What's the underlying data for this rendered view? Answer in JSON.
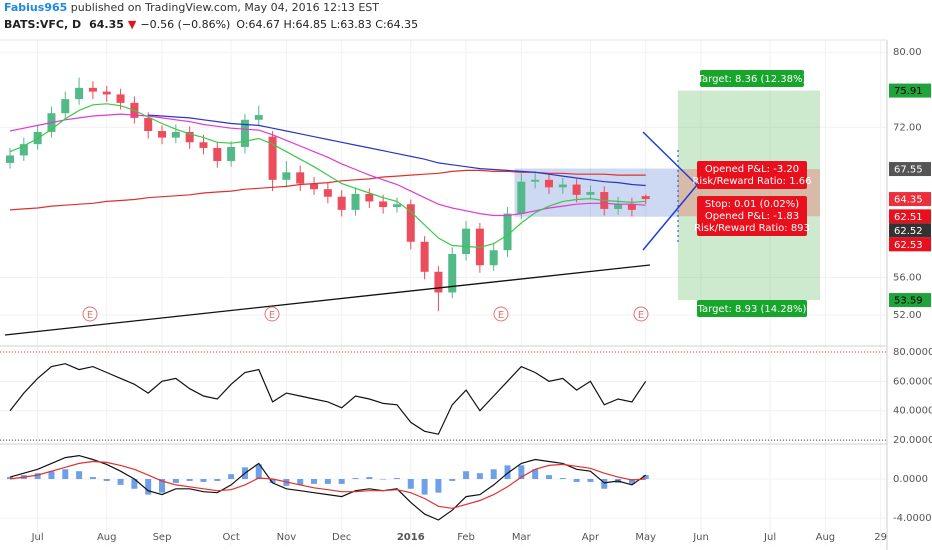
{
  "header": {
    "author": "Fabius965",
    "published": " published on TradingView.com, May 04, 2016 12:13 EST",
    "symbol": "BATS:VFC, D",
    "last": "64.35",
    "arrow": "▼",
    "change": "−0.56 (−0.86%)",
    "ohlc": "O:64.67 H:64.85 L:63.83 C:64.35"
  },
  "earnings": [
    "E",
    "E",
    "E",
    "E"
  ],
  "position": {
    "target_top": "Target: 8.36 (12.38%)",
    "pl_top": "Opened P&L: -3.20",
    "rr_top": "Risk/Reward Ratio: 1.66",
    "stop": "Stop: 0.01 (0.02%)",
    "pl_bottom": "Opened P&L: -1.83",
    "rr_bottom": "Risk/Reward Ratio: 893",
    "target_bottom": "Target: 8.93 (14.28%)"
  },
  "chart_data": [
    {
      "type": "candlestick",
      "categories": [
        null,
        null,
        "Jul",
        null,
        null,
        null,
        null,
        "Aug",
        null,
        null,
        null,
        "Sep",
        null,
        null,
        null,
        null,
        "Oct",
        null,
        null,
        null,
        "Nov",
        null,
        null,
        null,
        "Dec",
        null,
        null,
        null,
        null,
        "2016",
        null,
        null,
        null,
        "Feb",
        null,
        null,
        null,
        "Mar",
        null,
        null,
        null,
        null,
        "Apr",
        null,
        null,
        null,
        "May",
        null,
        null,
        null,
        "Jun",
        null,
        null,
        null,
        null,
        "Jul",
        null,
        null,
        null,
        "Aug",
        null,
        null,
        null,
        "29"
      ],
      "open": [
        68.2,
        69.0,
        70.2,
        71.5,
        73.5,
        75.0,
        76.2,
        75.8,
        75.5,
        74.6,
        73.0,
        71.6,
        70.9,
        71.5,
        70.4,
        69.8,
        68.4,
        69.9,
        72.8,
        71.0,
        66.4,
        67.2,
        66.0,
        65.4,
        64.6,
        63.2,
        64.9,
        64.1,
        63.5,
        63.8,
        59.8,
        56.6,
        54.4,
        58.5,
        61.2,
        57.3,
        58.9,
        62.8,
        66.2,
        66.4,
        65.6,
        65.9,
        64.8,
        65.1,
        63.3,
        63.8,
        64.67,
        null,
        null,
        null,
        null,
        null,
        null,
        null,
        null,
        null,
        null,
        null,
        null,
        null,
        null,
        null,
        null,
        null
      ],
      "high": [
        69.8,
        70.9,
        72.2,
        74.2,
        75.8,
        77.3,
        76.9,
        76.4,
        76.1,
        75.3,
        73.6,
        72.2,
        72.3,
        72.1,
        71.2,
        70.4,
        70.5,
        73.4,
        74.3,
        71.6,
        68.4,
        67.9,
        66.7,
        66.1,
        65.3,
        65.6,
        65.5,
        64.8,
        64.5,
        64.3,
        60.4,
        57.2,
        59.2,
        62.0,
        61.8,
        59.7,
        63.5,
        67.1,
        67.3,
        67.0,
        66.6,
        66.5,
        65.8,
        65.7,
        64.6,
        64.5,
        64.85,
        null,
        null,
        null,
        null,
        null,
        null,
        null,
        null,
        null,
        null,
        null,
        null,
        null,
        null,
        null,
        null,
        null
      ],
      "low": [
        67.6,
        68.4,
        69.6,
        70.9,
        72.9,
        74.4,
        75.0,
        74.7,
        73.9,
        72.4,
        70.8,
        70.2,
        70.3,
        69.7,
        69.1,
        67.7,
        67.8,
        69.2,
        72.1,
        65.2,
        65.6,
        65.2,
        64.8,
        63.9,
        62.5,
        62.6,
        63.4,
        62.8,
        62.9,
        59.0,
        55.8,
        52.4,
        53.8,
        57.8,
        56.5,
        56.7,
        58.2,
        62.2,
        65.5,
        64.9,
        64.9,
        64.0,
        64.3,
        62.6,
        62.7,
        62.5,
        63.83,
        null,
        null,
        null,
        null,
        null,
        null,
        null,
        null,
        null,
        null,
        null,
        null,
        null,
        null,
        null,
        null,
        null
      ],
      "close": [
        69.0,
        70.2,
        71.5,
        73.5,
        75.0,
        76.2,
        75.8,
        75.5,
        74.6,
        73.0,
        71.6,
        70.9,
        71.5,
        70.4,
        69.8,
        68.4,
        69.9,
        72.8,
        73.3,
        66.4,
        67.2,
        66.0,
        65.4,
        64.6,
        63.2,
        64.9,
        64.1,
        63.5,
        63.8,
        59.8,
        56.6,
        54.4,
        58.5,
        61.2,
        57.3,
        58.9,
        62.8,
        66.2,
        66.4,
        65.6,
        65.9,
        64.8,
        65.1,
        63.3,
        63.8,
        63.2,
        64.35,
        null,
        null,
        null,
        null,
        null,
        null,
        null,
        null,
        null,
        null,
        null,
        null,
        null,
        null,
        null,
        null,
        null
      ],
      "up_color": "#53b987",
      "down_color": "#eb4d5c",
      "series": [
        {
          "color": "#e0302c",
          "values": [
            63.2,
            63.3,
            63.4,
            63.6,
            63.7,
            63.8,
            63.9,
            64.1,
            64.2,
            64.3,
            64.5,
            64.6,
            64.7,
            64.8,
            65.0,
            65.1,
            65.2,
            65.4,
            65.5,
            65.6,
            65.7,
            65.9,
            66.0,
            66.1,
            66.3,
            66.4,
            66.5,
            66.7,
            66.8,
            66.9,
            67.0,
            67.1,
            67.3,
            67.4,
            67.4,
            67.3,
            67.3,
            67.2,
            67.2,
            67.1,
            67.1,
            67.0,
            67.0,
            67.0,
            66.9,
            66.9,
            66.9,
            null,
            null,
            null,
            null,
            null,
            null,
            null,
            null,
            null,
            null,
            null,
            null,
            null,
            null,
            null,
            null,
            null
          ]
        },
        {
          "color": "#2a35c9",
          "values": [
            null,
            null,
            null,
            null,
            null,
            null,
            null,
            null,
            null,
            null,
            73.3,
            73.2,
            73.1,
            73.0,
            72.8,
            72.6,
            72.4,
            72.3,
            72.2,
            71.9,
            71.6,
            71.3,
            71.0,
            70.7,
            70.4,
            70.1,
            69.8,
            69.5,
            69.2,
            68.9,
            68.6,
            68.2,
            68.0,
            67.8,
            67.6,
            67.5,
            67.4,
            67.3,
            67.2,
            67.0,
            66.8,
            66.6,
            66.4,
            66.2,
            66.1,
            65.9,
            65.8,
            null,
            null,
            null,
            null,
            null,
            null,
            null,
            null,
            null,
            null,
            null,
            null,
            null,
            null,
            null,
            null,
            null
          ]
        },
        {
          "color": "#e03ad0",
          "values": [
            71.6,
            71.9,
            72.2,
            72.5,
            72.8,
            73.0,
            73.2,
            73.3,
            73.4,
            73.3,
            73.2,
            73.0,
            72.8,
            72.6,
            72.3,
            72.1,
            71.9,
            71.8,
            71.7,
            71.2,
            70.6,
            70.0,
            69.4,
            68.8,
            68.1,
            67.5,
            66.9,
            66.4,
            65.9,
            65.2,
            64.5,
            63.8,
            63.4,
            63.1,
            62.8,
            62.6,
            62.6,
            62.8,
            63.1,
            63.4,
            63.6,
            63.8,
            63.9,
            63.9,
            63.8,
            63.8,
            63.7,
            null,
            null,
            null,
            null,
            null,
            null,
            null,
            null,
            null,
            null,
            null,
            null,
            null,
            null,
            null,
            null,
            null
          ]
        },
        {
          "color": "#3cc84a",
          "values": [
            69.4,
            70.0,
            70.8,
            71.8,
            72.9,
            73.8,
            74.4,
            74.5,
            74.3,
            73.8,
            73.1,
            72.4,
            71.8,
            71.3,
            70.9,
            70.4,
            70.3,
            70.5,
            70.8,
            70.2,
            69.4,
            68.6,
            67.8,
            66.9,
            66.0,
            65.5,
            65.0,
            64.5,
            64.1,
            63.0,
            61.6,
            60.2,
            59.4,
            59.3,
            59.2,
            59.6,
            60.5,
            61.8,
            62.9,
            63.6,
            64.1,
            64.3,
            64.4,
            64.2,
            64.1,
            64.0,
            64.1,
            null,
            null,
            null,
            null,
            null,
            null,
            null,
            null,
            null,
            null,
            null,
            null,
            null,
            null,
            null,
            null,
            null
          ]
        }
      ],
      "ylim": [
        48.8,
        81.3
      ],
      "yticks": [
        {
          "value": 80,
          "label": "80.00"
        },
        {
          "value": 72,
          "label": "72.00"
        },
        {
          "value": 56,
          "label": "56.00"
        },
        {
          "value": 52,
          "label": "52.00"
        }
      ],
      "grid": true,
      "price_tags": [
        {
          "value": 75.91,
          "color": "#1fa33a",
          "text_color": "#000000"
        },
        {
          "value": 67.55,
          "color": "#555555",
          "text_color": "#ffffff"
        },
        {
          "value": 64.35,
          "color": "#eb2f3b",
          "text_color": "#ffffff"
        },
        {
          "value": 62.51,
          "color": "#e8101c",
          "text_color": "#ffffff"
        },
        {
          "value": 62.52,
          "color": "#333333",
          "text_color": "#ffffff"
        },
        {
          "value": 62.53,
          "color": "#e8101c",
          "text_color": "#ffffff"
        },
        {
          "value": 53.59,
          "color": "#1fa33a",
          "text_color": "#000000"
        }
      ]
    },
    {
      "type": "line",
      "series": [
        {
          "color": "#111111",
          "values": [
            40,
            52,
            62,
            70,
            72,
            68,
            70,
            66,
            62,
            58,
            52,
            60,
            62,
            55,
            50,
            48,
            58,
            66,
            68,
            46,
            52,
            50,
            48,
            46,
            42,
            50,
            48,
            45,
            44,
            32,
            26,
            24,
            44,
            54,
            40,
            50,
            60,
            70,
            66,
            60,
            62,
            54,
            60,
            44,
            48,
            46,
            60,
            null,
            null,
            null,
            null,
            null,
            null,
            null,
            null,
            null,
            null,
            null,
            null,
            null,
            null,
            null,
            null,
            null
          ]
        }
      ],
      "ylim": [
        18,
        82.7
      ],
      "yticks": [
        {
          "value": 80,
          "label": "80.0000"
        },
        {
          "value": 60,
          "label": "60.0000"
        },
        {
          "value": 40,
          "label": "40.0000"
        },
        {
          "value": 20,
          "label": "20.0000"
        }
      ],
      "grid": true,
      "levels": [
        {
          "value": 80,
          "color": "#e53935"
        },
        {
          "value": 20,
          "color": "#444444"
        }
      ]
    },
    {
      "type": "line",
      "series": [
        {
          "color": "#3f7fe0",
          "style": "histogram",
          "values": [
            0.2,
            0.4,
            0.6,
            0.8,
            1.0,
            0.8,
            0.2,
            -0.2,
            -0.6,
            -1.0,
            -1.6,
            -1.4,
            -0.4,
            -0.2,
            -0.3,
            -0.2,
            0.5,
            1.2,
            1.5,
            -0.4,
            -0.7,
            -0.6,
            -0.5,
            -0.5,
            -0.5,
            0.1,
            0.2,
            0.0,
            0.1,
            -1.0,
            -1.6,
            -1.4,
            -0.2,
            0.8,
            0.6,
            1.0,
            1.4,
            1.4,
            1.0,
            0.4,
            0.1,
            -0.3,
            -0.3,
            -1.0,
            -0.4,
            -0.5,
            0.4,
            null,
            null,
            null,
            null,
            null,
            null,
            null,
            null,
            null,
            null,
            null,
            null,
            null,
            null,
            null,
            null,
            null
          ]
        },
        {
          "color": "#111111",
          "values": [
            0.2,
            0.6,
            1.0,
            1.6,
            2.2,
            2.4,
            2.0,
            1.5,
            0.8,
            0.0,
            -1.2,
            -1.6,
            -1.0,
            -1.0,
            -1.3,
            -1.4,
            -0.6,
            0.6,
            1.6,
            -0.4,
            -1.0,
            -1.2,
            -1.4,
            -1.6,
            -1.8,
            -1.2,
            -1.0,
            -1.2,
            -1.0,
            -2.4,
            -3.6,
            -4.2,
            -3.2,
            -1.8,
            -1.6,
            -0.6,
            0.6,
            1.6,
            2.0,
            1.8,
            1.6,
            1.0,
            0.8,
            -0.4,
            -0.2,
            -0.6,
            0.4,
            null,
            null,
            null,
            null,
            null,
            null,
            null,
            null,
            null,
            null,
            null,
            null,
            null,
            null,
            null,
            null,
            null
          ]
        },
        {
          "color": "#e0302c",
          "values": [
            0.0,
            0.2,
            0.4,
            0.8,
            1.2,
            1.6,
            1.8,
            1.7,
            1.4,
            1.0,
            0.4,
            -0.2,
            -0.6,
            -0.8,
            -1.0,
            -1.2,
            -1.1,
            -0.6,
            0.1,
            0.0,
            -0.3,
            -0.6,
            -0.9,
            -1.1,
            -1.3,
            -1.3,
            -1.2,
            -1.2,
            -1.1,
            -1.4,
            -2.0,
            -2.8,
            -3.0,
            -2.6,
            -2.2,
            -1.6,
            -0.8,
            0.2,
            1.0,
            1.4,
            1.5,
            1.3,
            1.1,
            0.6,
            0.2,
            -0.1,
            0.0,
            null,
            null,
            null,
            null,
            null,
            null,
            null,
            null,
            null,
            null,
            null,
            null,
            null,
            null,
            null,
            null,
            null
          ]
        }
      ],
      "ylim": [
        -6.77,
        3.49
      ],
      "yticks": [
        {
          "value": 0,
          "label": "0.0000"
        },
        {
          "value": -4,
          "label": "-4.0000"
        }
      ],
      "grid": true
    }
  ]
}
